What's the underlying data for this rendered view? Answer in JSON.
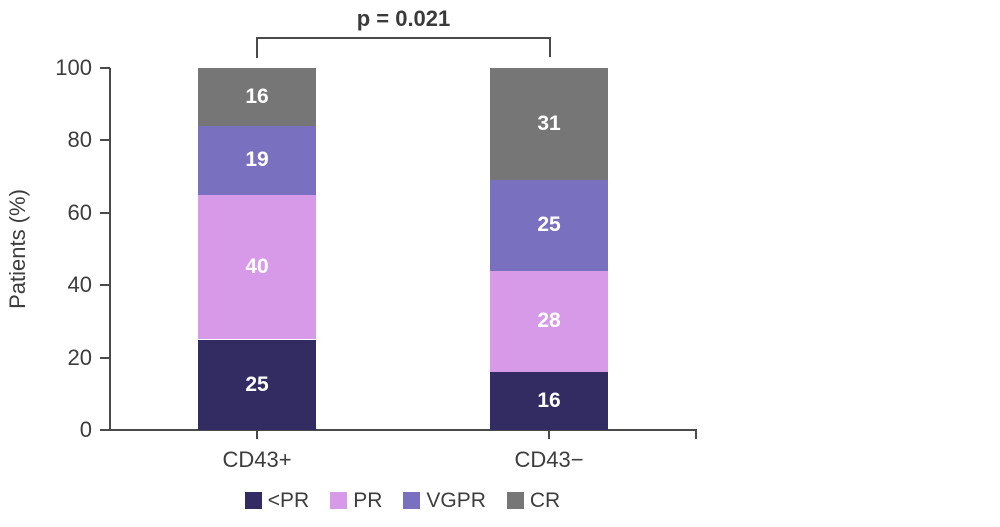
{
  "figure": {
    "background": "#ffffff",
    "axis_color": "#4a4a4a",
    "text_color": "#3d3d3d",
    "value_label_color": "#ffffff"
  },
  "chart_data": {
    "type": "bar",
    "stacked": true,
    "title": "",
    "xlabel": "",
    "ylabel": "Patients (%)",
    "ylim": [
      0,
      100
    ],
    "yticks": [
      0,
      20,
      40,
      60,
      80,
      100
    ],
    "grid": false,
    "legend_position": "bottom",
    "categories": [
      "CD43+",
      "CD43−"
    ],
    "series": [
      {
        "name": "<PR",
        "color": "#332c62",
        "values": [
          25,
          16
        ]
      },
      {
        "name": "PR",
        "color": "#d69ae8",
        "values": [
          40,
          28
        ]
      },
      {
        "name": "VGPR",
        "color": "#7a70c0",
        "values": [
          19,
          25
        ]
      },
      {
        "name": "CR",
        "color": "#767676",
        "values": [
          16,
          31
        ]
      }
    ],
    "annotation": {
      "text": "p = 0.021",
      "between": [
        "CD43+",
        "CD43−"
      ]
    }
  }
}
